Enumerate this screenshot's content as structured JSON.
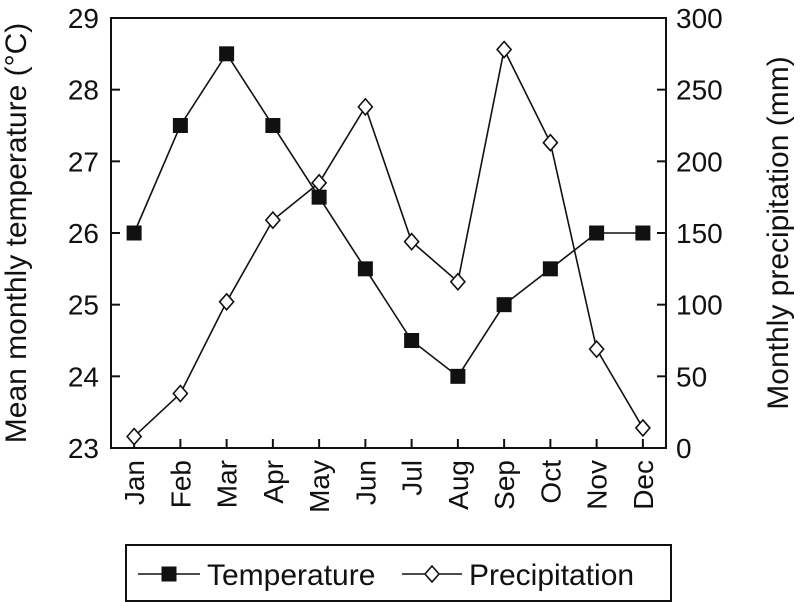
{
  "chart_data": {
    "type": "line",
    "categories": [
      "Jan",
      "Feb",
      "Mar",
      "Apr",
      "May",
      "Jun",
      "Jul",
      "Aug",
      "Sep",
      "Oct",
      "Nov",
      "Dec"
    ],
    "series": [
      {
        "name": "Temperature",
        "axis": "left",
        "marker": "filled-square",
        "values": [
          26.0,
          27.5,
          28.5,
          27.5,
          26.5,
          25.5,
          24.5,
          24.0,
          25.0,
          25.5,
          26.0,
          26.0
        ]
      },
      {
        "name": "Precipitation",
        "axis": "right",
        "marker": "open-diamond",
        "values": [
          8,
          38,
          102,
          159,
          185,
          238,
          144,
          116,
          278,
          213,
          69,
          14
        ]
      }
    ],
    "ylabel": "Mean monthly temperature (°C)",
    "y2label": "Monthly precipitation (mm)",
    "ylim": [
      23,
      29
    ],
    "y2lim": [
      0,
      300
    ],
    "yticks": [
      "23",
      "24",
      "25",
      "26",
      "27",
      "28",
      "29"
    ],
    "y2ticks": [
      "0",
      "50",
      "100",
      "150",
      "200",
      "250",
      "300"
    ],
    "grid": false,
    "legend_position": "bottom",
    "colors": {
      "line": "#111111",
      "marker_fill_temperature": "#111111",
      "marker_fill_precipitation": "#ffffff"
    }
  }
}
